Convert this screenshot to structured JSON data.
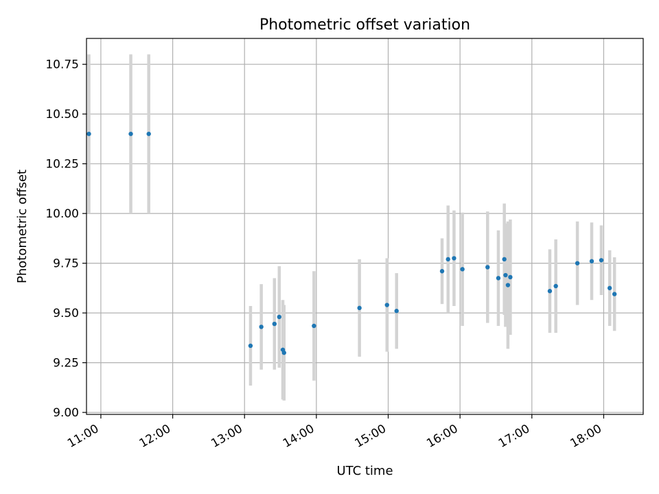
{
  "chart_data": {
    "type": "scatter",
    "title": "Photometric offset variation",
    "xlabel": "UTC time",
    "ylabel": "Photometric offset",
    "xlim": [
      "10:48",
      "18:33"
    ],
    "ylim": [
      8.99,
      10.88
    ],
    "x_ticks": [
      "11:00",
      "12:00",
      "13:00",
      "14:00",
      "15:00",
      "16:00",
      "17:00",
      "18:00"
    ],
    "y_ticks": [
      "9.00",
      "9.25",
      "9.50",
      "9.75",
      "10.00",
      "10.25",
      "10.50",
      "10.75"
    ],
    "grid": true,
    "colors": {
      "point": "#1f77b4",
      "error_bar": "#d3d3d3",
      "grid": "#b0b0b0",
      "axes": "#000000"
    },
    "points": [
      {
        "x": "10:50",
        "y": 10.4,
        "err": 0.4
      },
      {
        "x": "11:25",
        "y": 10.4,
        "err": 0.4
      },
      {
        "x": "11:40",
        "y": 10.4,
        "err": 0.4
      },
      {
        "x": "13:05",
        "y": 9.335,
        "err": 0.2
      },
      {
        "x": "13:14",
        "y": 9.43,
        "err": 0.215
      },
      {
        "x": "13:25",
        "y": 9.445,
        "err": 0.23
      },
      {
        "x": "13:29",
        "y": 9.48,
        "err": 0.255
      },
      {
        "x": "13:32",
        "y": 9.315,
        "err": 0.25
      },
      {
        "x": "13:33",
        "y": 9.3,
        "err": 0.24
      },
      {
        "x": "13:58",
        "y": 9.435,
        "err": 0.275
      },
      {
        "x": "14:36",
        "y": 9.525,
        "err": 0.245
      },
      {
        "x": "14:59",
        "y": 9.54,
        "err": 0.235
      },
      {
        "x": "15:07",
        "y": 9.51,
        "err": 0.19
      },
      {
        "x": "15:45",
        "y": 9.71,
        "err": 0.165
      },
      {
        "x": "15:50",
        "y": 9.77,
        "err": 0.27
      },
      {
        "x": "15:55",
        "y": 9.775,
        "err": 0.24
      },
      {
        "x": "16:02",
        "y": 9.72,
        "err": 0.285
      },
      {
        "x": "16:23",
        "y": 9.73,
        "err": 0.28
      },
      {
        "x": "16:32",
        "y": 9.675,
        "err": 0.24
      },
      {
        "x": "16:37",
        "y": 9.77,
        "err": 0.28
      },
      {
        "x": "16:38",
        "y": 9.69,
        "err": 0.26
      },
      {
        "x": "16:40",
        "y": 9.64,
        "err": 0.32
      },
      {
        "x": "16:42",
        "y": 9.68,
        "err": 0.29
      },
      {
        "x": "17:15",
        "y": 9.61,
        "err": 0.21
      },
      {
        "x": "17:20",
        "y": 9.635,
        "err": 0.235
      },
      {
        "x": "17:38",
        "y": 9.75,
        "err": 0.21
      },
      {
        "x": "17:50",
        "y": 9.76,
        "err": 0.195
      },
      {
        "x": "17:58",
        "y": 9.765,
        "err": 0.175
      },
      {
        "x": "18:05",
        "y": 9.625,
        "err": 0.19
      },
      {
        "x": "18:09",
        "y": 9.595,
        "err": 0.185
      }
    ]
  }
}
